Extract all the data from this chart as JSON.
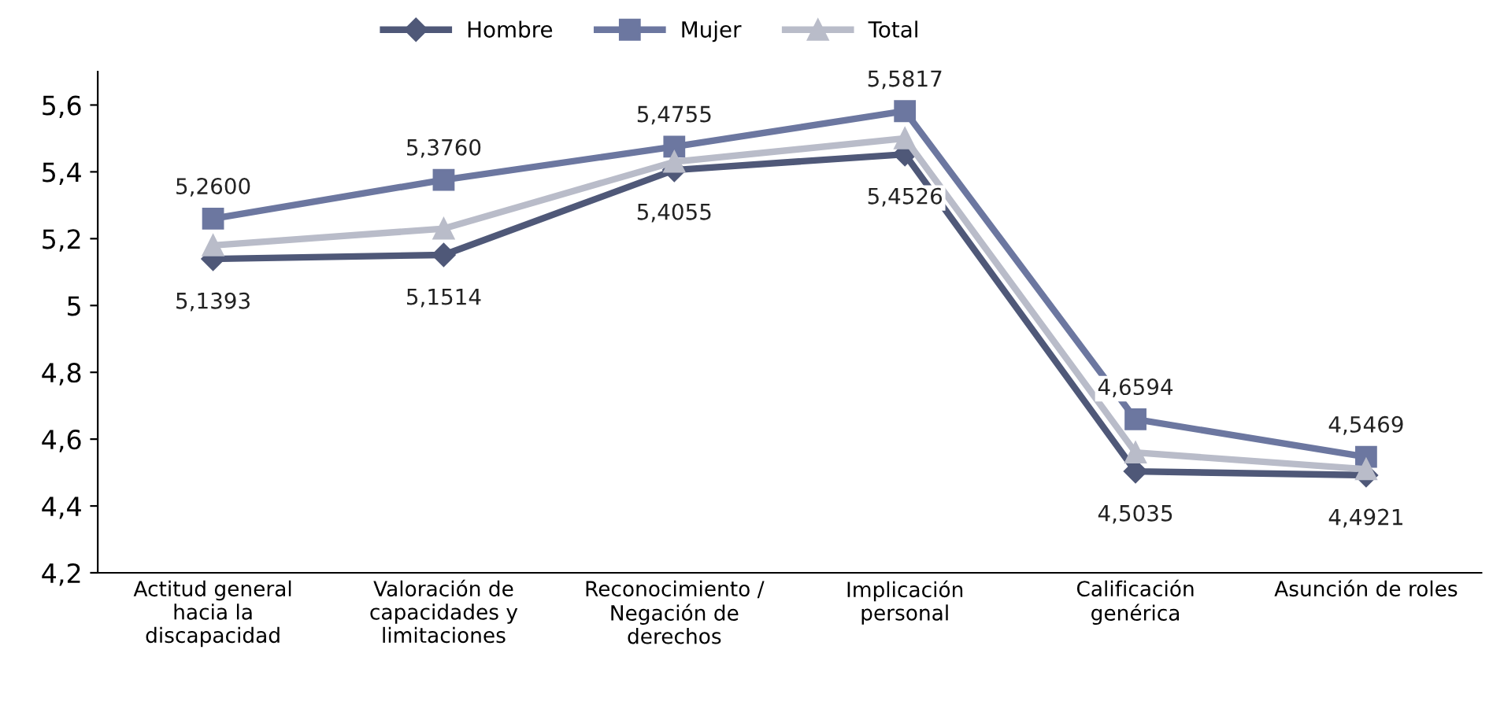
{
  "chart_data": {
    "type": "line",
    "categories": [
      "Actitud general\nhacia la\ndiscapacidad",
      "Valoración de\ncapacidades y\nlimitaciones",
      "Reconocimiento /\nNegación de\nderechos",
      "Implicación\npersonal",
      "Calificación\ngenérica",
      "Asunción de roles"
    ],
    "series": [
      {
        "name": "Hombre",
        "color": "#4f5878",
        "marker": "diamond",
        "values": [
          5.1393,
          5.1514,
          5.4055,
          5.4526,
          4.5035,
          4.4921
        ],
        "value_labels": [
          "5,1393",
          "5,1514",
          "5,4055",
          "5,4526",
          "4,5035",
          "4,4921"
        ]
      },
      {
        "name": "Mujer",
        "color": "#6c77a0",
        "marker": "square",
        "values": [
          5.26,
          5.376,
          5.4755,
          5.5817,
          4.6594,
          4.5469
        ],
        "value_labels": [
          "5,2600",
          "5,3760",
          "5,4755",
          "5,5817",
          "4,6594",
          "4,5469"
        ]
      },
      {
        "name": "Total",
        "color": "#b9bcc9",
        "marker": "triangle",
        "values": [
          5.18,
          5.23,
          5.43,
          5.5,
          4.56,
          4.51
        ]
      }
    ],
    "ylim": [
      4.2,
      5.7
    ],
    "yticks": [
      {
        "value": 4.2,
        "label": "4,2"
      },
      {
        "value": 4.4,
        "label": "4,4"
      },
      {
        "value": 4.6,
        "label": "4,6"
      },
      {
        "value": 4.8,
        "label": "4,8"
      },
      5,
      {
        "value": 5.2,
        "label": "5,2"
      },
      {
        "value": 5.4,
        "label": "5,4"
      },
      {
        "value": 5.6,
        "label": "5,6"
      }
    ],
    "grid": false,
    "legend": "top",
    "line_style": "solid"
  }
}
